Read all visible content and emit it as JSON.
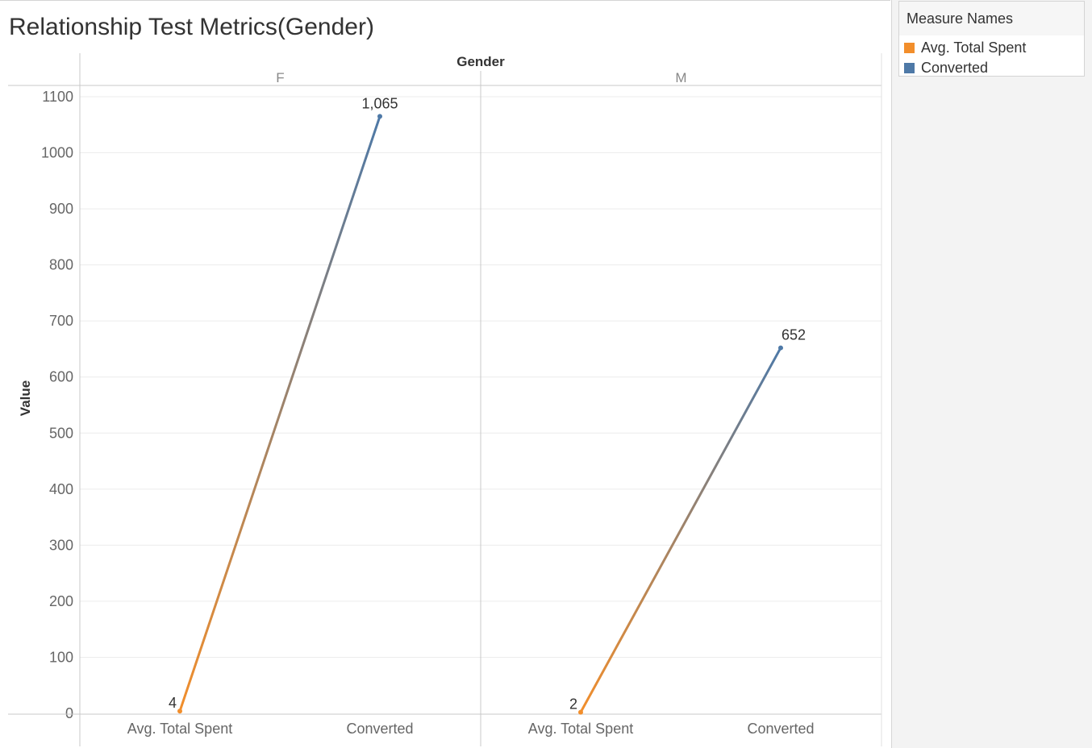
{
  "title": "Relationship Test Metrics(Gender)",
  "legend": {
    "header": "Measure Names",
    "items": [
      {
        "label": "Avg. Total Spent",
        "color": "#f28e2b"
      },
      {
        "label": "Converted",
        "color": "#4e79a7"
      }
    ]
  },
  "chart_data": {
    "type": "line",
    "title": "Relationship Test Metrics(Gender)",
    "column_header": "Gender",
    "ylabel": "Value",
    "ylim": [
      0,
      1100
    ],
    "yticks": [
      "0",
      "100",
      "200",
      "300",
      "400",
      "500",
      "600",
      "700",
      "800",
      "900",
      "1000",
      "1100"
    ],
    "grid": true,
    "legend_position": "top-right",
    "categories": [
      "Avg. Total Spent",
      "Converted"
    ],
    "panels": [
      {
        "name": "F",
        "values": [
          4,
          1065
        ],
        "labels": [
          "4",
          "1,065"
        ]
      },
      {
        "name": "M",
        "values": [
          2,
          652
        ],
        "labels": [
          "2",
          "652"
        ]
      }
    ]
  }
}
